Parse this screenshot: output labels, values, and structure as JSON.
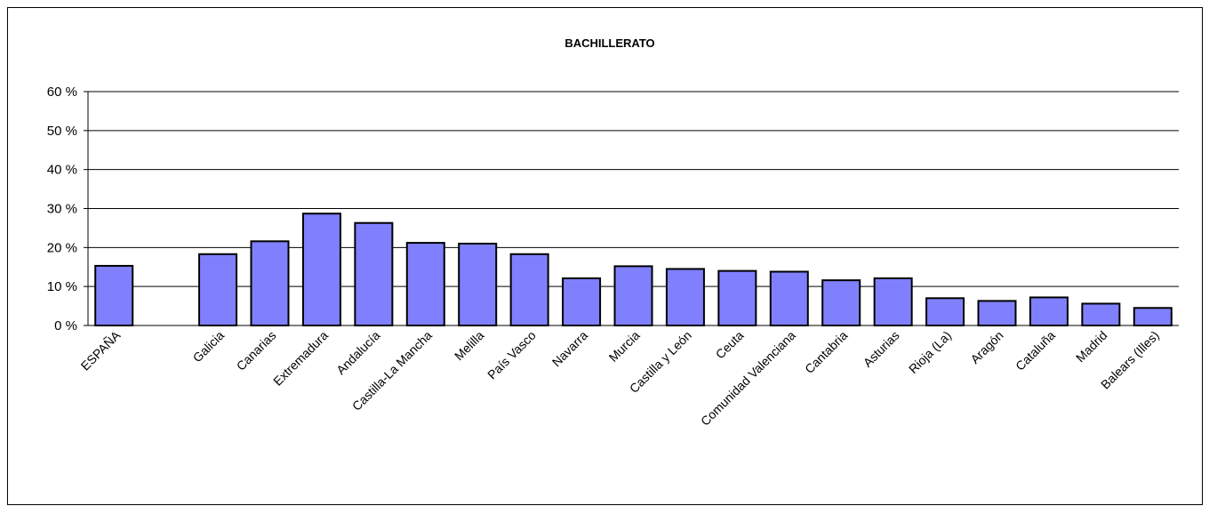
{
  "chart_data": {
    "type": "bar",
    "title": "BACHILLERATO",
    "xlabel": "",
    "ylabel": "",
    "ylim": [
      0,
      60
    ],
    "yticks": [
      0,
      10,
      20,
      30,
      40,
      50,
      60
    ],
    "ytick_labels": [
      "0 %",
      "10 %",
      "20 %",
      "30 %",
      "40 %",
      "50 %",
      "60 %"
    ],
    "grid": true,
    "legend": "none",
    "bar_color": "#8080FF",
    "bar_edge_color": "#000000",
    "categories": [
      "ESPAÑA",
      "",
      "Galicia",
      "Canarias",
      "Extremadura",
      "Andalucía",
      "Castilla-La Mancha",
      "Melilla",
      "País Vasco",
      "Navarra",
      "Murcia",
      "Castilla y León",
      "Ceuta",
      "Comunidad Valenciana",
      "Cantabria",
      "Asturias",
      "Rioja (La)",
      "Aragón",
      "Cataluña",
      "Madrid",
      "Balears (Illes)"
    ],
    "values": [
      15.3,
      null,
      18.3,
      21.6,
      28.7,
      26.3,
      21.2,
      21.0,
      18.3,
      12.1,
      15.2,
      14.5,
      14.0,
      13.8,
      11.6,
      12.1,
      7.0,
      6.3,
      7.2,
      5.6,
      4.5
    ]
  }
}
